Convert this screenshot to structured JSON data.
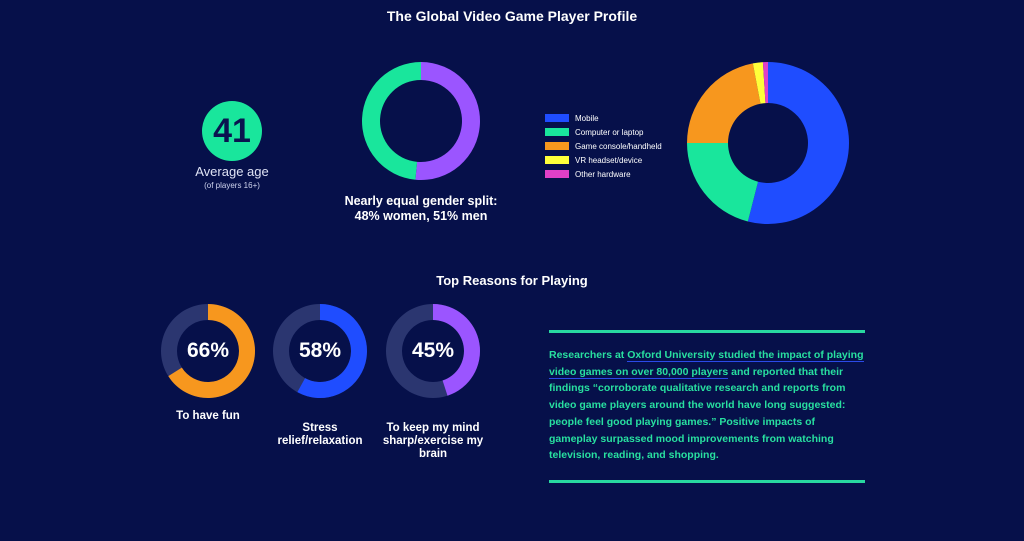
{
  "title": "The Global Video Game Player Profile",
  "age": {
    "value": "41",
    "label": "Average age",
    "note": "(of players 16+)",
    "color": "#19e69c"
  },
  "gender": {
    "caption_line1": "Nearly equal gender split:",
    "caption_line2": "48% women, 51% men"
  },
  "reasons_title": "Top Reasons for Playing",
  "research": {
    "link_text": "Oxford University studied the impact of playing video games on over 80,000 players",
    "before": "Researchers at ",
    "after": " and reported that their findings “corroborate qualitative research and reports from video game players around the world have long suggested: people feel good playing games.” Positive impacts of gameplay surpassed mood improvements from watching television, reading, and shopping."
  },
  "chart_data": [
    {
      "type": "donut",
      "name": "gender",
      "slices": [
        {
          "label": "women",
          "value": 48,
          "color": "#19e69c"
        },
        {
          "label": "men",
          "value": 51,
          "color": "#9b55ff"
        }
      ]
    },
    {
      "type": "pie",
      "name": "devices",
      "legend_placement": "left",
      "slices": [
        {
          "label": "Mobile",
          "value": 54,
          "color": "#1f4dff"
        },
        {
          "label": "Computer or laptop",
          "value": 21,
          "color": "#19e69c"
        },
        {
          "label": "Game console/handheld",
          "value": 22,
          "color": "#f7971e"
        },
        {
          "label": "VR headset/device",
          "value": 2,
          "color": "#ffff3a"
        },
        {
          "label": "Other hardware",
          "value": 1,
          "color": "#e040c8"
        }
      ]
    },
    {
      "type": "donut",
      "name": "reasons",
      "track_color": "#2b3670",
      "items": [
        {
          "label": "66%",
          "value": 66,
          "caption": "To have fun",
          "color": "#f7971e"
        },
        {
          "label": "58%",
          "value": 58,
          "caption": "Stress relief/relaxation",
          "color": "#1f4dff"
        },
        {
          "label": "45%",
          "value": 45,
          "caption": "To keep my mind sharp/exercise my brain",
          "color": "#9b55ff"
        }
      ]
    }
  ]
}
